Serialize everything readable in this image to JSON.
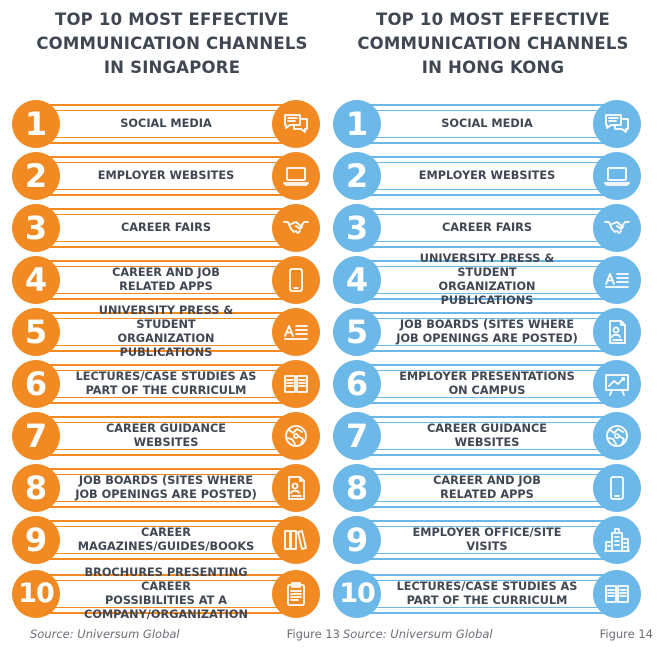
{
  "colors": {
    "singapore": "#f28a24",
    "hong_kong": "#6cb8e8",
    "text": "#404752"
  },
  "panels": [
    {
      "title_lines": [
        "TOP 10 MOST EFFECTIVE",
        "COMMUNICATION CHANNELS",
        "IN SINGAPORE"
      ],
      "source": "Source: Universum Global",
      "figure": "Figure 13",
      "items": [
        {
          "rank": "1",
          "lines": [
            "SOCIAL MEDIA"
          ],
          "icon": "chat-bubbles-icon"
        },
        {
          "rank": "2",
          "lines": [
            "EMPLOYER WEBSITES"
          ],
          "icon": "laptop-icon"
        },
        {
          "rank": "3",
          "lines": [
            "CAREER FAIRS"
          ],
          "icon": "handshake-icon"
        },
        {
          "rank": "4",
          "lines": [
            "CAREER AND JOB",
            "RELATED APPS"
          ],
          "icon": "smartphone-icon"
        },
        {
          "rank": "5",
          "lines": [
            "UNIVERSITY PRESS & STUDENT",
            "ORGANIZATION PUBLICATIONS"
          ],
          "icon": "publication-icon"
        },
        {
          "rank": "6",
          "lines": [
            "LECTURES/CASE STUDIES AS",
            "PART OF THE CURRICULM"
          ],
          "icon": "open-book-icon"
        },
        {
          "rank": "7",
          "lines": [
            "CAREER GUIDANCE WEBSITES"
          ],
          "icon": "globe-icon"
        },
        {
          "rank": "8",
          "lines": [
            "JOB BOARDS (SITES WHERE",
            "JOB OPENINGS ARE POSTED)"
          ],
          "icon": "job-posting-icon"
        },
        {
          "rank": "9",
          "lines": [
            "CAREER",
            "MAGAZINES/GUIDES/BOOKS"
          ],
          "icon": "books-icon"
        },
        {
          "rank": "10",
          "lines": [
            "BROCHURES PRESENTING CAREER",
            "POSSIBILITIES AT A",
            "COMPANY/ORGANIZATION"
          ],
          "icon": "clipboard-icon"
        }
      ]
    },
    {
      "title_lines": [
        "TOP 10 MOST EFFECTIVE",
        "COMMUNICATION CHANNELS",
        "IN HONG KONG"
      ],
      "source": "Source: Universum Global",
      "figure": "Figure 14",
      "items": [
        {
          "rank": "1",
          "lines": [
            "SOCIAL MEDIA"
          ],
          "icon": "chat-bubbles-icon"
        },
        {
          "rank": "2",
          "lines": [
            "EMPLOYER WEBSITES"
          ],
          "icon": "laptop-icon"
        },
        {
          "rank": "3",
          "lines": [
            "CAREER FAIRS"
          ],
          "icon": "handshake-icon"
        },
        {
          "rank": "4",
          "lines": [
            "UNIVERSITY PRESS & STUDENT",
            "ORGANIZATION PUBLICATIONS"
          ],
          "icon": "publication-icon"
        },
        {
          "rank": "5",
          "lines": [
            "JOB BOARDS (SITES WHERE",
            "JOB OPENINGS ARE POSTED)"
          ],
          "icon": "job-posting-icon"
        },
        {
          "rank": "6",
          "lines": [
            "EMPLOYER PRESENTATIONS",
            "ON CAMPUS"
          ],
          "icon": "presentation-board-icon"
        },
        {
          "rank": "7",
          "lines": [
            "CAREER GUIDANCE WEBSITES"
          ],
          "icon": "globe-icon"
        },
        {
          "rank": "8",
          "lines": [
            "CAREER AND JOB",
            "RELATED APPS"
          ],
          "icon": "smartphone-icon"
        },
        {
          "rank": "9",
          "lines": [
            "EMPLOYER OFFICE/SITE VISITS"
          ],
          "icon": "office-building-icon"
        },
        {
          "rank": "10",
          "lines": [
            "LECTURES/CASE STUDIES AS",
            "PART OF THE CURRICULM"
          ],
          "icon": "open-book-icon"
        }
      ]
    }
  ]
}
